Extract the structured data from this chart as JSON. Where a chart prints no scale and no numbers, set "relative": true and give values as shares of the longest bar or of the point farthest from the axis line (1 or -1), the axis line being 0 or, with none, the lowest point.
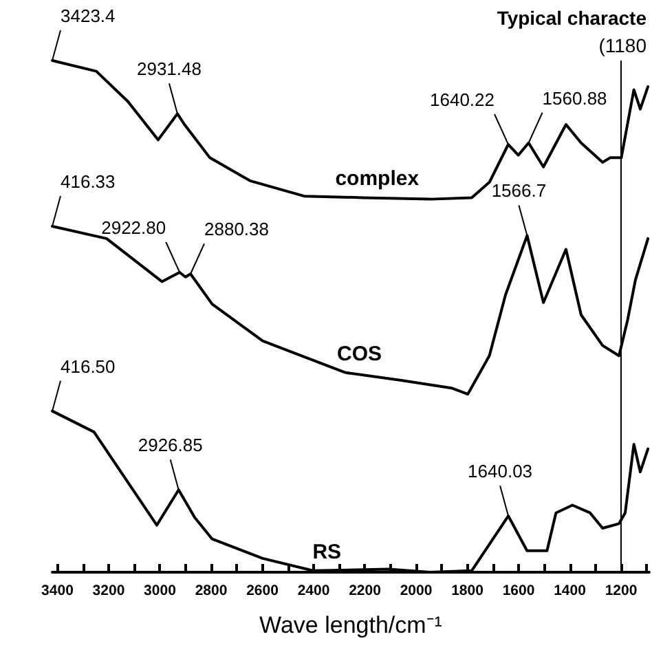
{
  "chart_data": {
    "type": "line",
    "relative": true,
    "xlabel": "Wave length/cm⁻¹",
    "xlim": [
      3420,
      1090
    ],
    "xticks": [
      3400,
      {
        "value": 3300,
        "label": null
      },
      3200,
      {
        "value": 3100,
        "label": null
      },
      3000,
      {
        "value": 2900,
        "label": null
      },
      2800,
      {
        "value": 2700,
        "label": null
      },
      2600,
      {
        "value": 2500,
        "label": null
      },
      2400,
      {
        "value": 2300,
        "label": null
      },
      2200,
      {
        "value": 2100,
        "label": null
      },
      2000,
      {
        "value": 1900,
        "label": null
      },
      1800,
      {
        "value": 1700,
        "label": null
      },
      1600,
      {
        "value": 1500,
        "label": null
      },
      1400,
      {
        "value": 1300,
        "label": null
      },
      1200,
      {
        "value": 1100,
        "label": null
      }
    ],
    "tick_labels": "x",
    "grid": false,
    "legend": false,
    "marker": "none",
    "line_style": "solid",
    "series": [
      {
        "name": "complex",
        "color": "#000000",
        "x": [
          3420,
          3248,
          3125,
          3007,
          2931.48,
          2904,
          2805,
          2648,
          2437,
          2206,
          1945,
          1783,
          1714,
          1640.22,
          1601,
          1560.88,
          1503,
          1415,
          1356,
          1272,
          1243,
          1199,
          1184,
          1150,
          1125,
          1095
        ],
        "values": [
          1.0,
          0.979,
          0.92,
          0.845,
          0.896,
          0.875,
          0.81,
          0.765,
          0.735,
          0.732,
          0.729,
          0.732,
          0.762,
          0.836,
          0.815,
          0.839,
          0.792,
          0.875,
          0.839,
          0.801,
          0.81,
          0.81,
          0.851,
          0.943,
          0.905,
          0.949
        ]
      },
      {
        "name": "COS",
        "color": "#000000",
        "x": [
          3420,
          3208,
          2992,
          2922.8,
          2900,
          2880.38,
          2796,
          2599,
          2275,
          2058,
          1862,
          1798,
          1714,
          1651,
          1566.7,
          1503,
          1415,
          1356,
          1272,
          1208,
          1174,
          1144,
          1095
        ],
        "values": [
          0.676,
          0.652,
          0.568,
          0.586,
          0.577,
          0.583,
          0.524,
          0.452,
          0.39,
          0.375,
          0.36,
          0.348,
          0.423,
          0.542,
          0.658,
          0.527,
          0.631,
          0.503,
          0.443,
          0.423,
          0.494,
          0.571,
          0.652
        ]
      },
      {
        "name": "RS",
        "color": "#000000",
        "x": [
          3420,
          3257,
          3125,
          3012,
          2926.85,
          2864,
          2796,
          2599,
          2402,
          2108,
          1945,
          1783,
          1640.03,
          1567,
          1489,
          1454,
          1390,
          1321,
          1272,
          1208,
          1184,
          1150,
          1125,
          1095
        ],
        "values": [
          0.315,
          0.274,
          0.176,
          0.092,
          0.161,
          0.107,
          0.065,
          0.027,
          0.003,
          0.006,
          0,
          0.003,
          0.11,
          0.042,
          0.042,
          0.116,
          0.131,
          0.116,
          0.086,
          0.095,
          0.116,
          0.25,
          0.196,
          0.241
        ]
      }
    ],
    "ref_lines": [
      {
        "axis": "x",
        "value": 1200,
        "color": "#000000"
      }
    ],
    "annotations": [
      "Typical characte",
      "(1180",
      {
        "text": "3423.4",
        "x": 3420,
        "y": 1.0
      },
      {
        "text": "2931.48",
        "x": 2931.48,
        "y": 0.896
      },
      {
        "text": "1640.22",
        "x": 1640.22,
        "y": 0.836
      },
      {
        "text": "1560.88",
        "x": 1560.88,
        "y": 0.839
      },
      {
        "text": "416.33",
        "x": 3420,
        "y": 0.676
      },
      {
        "text": "2922.80",
        "x": 2922.8,
        "y": 0.586
      },
      {
        "text": "2880.38",
        "x": 2880.38,
        "y": 0.583
      },
      {
        "text": "1566.7",
        "x": 1566.7,
        "y": 0.658
      },
      {
        "text": "416.50",
        "x": 3420,
        "y": 0.315
      },
      {
        "text": "2926.85",
        "x": 2926.85,
        "y": 0.161
      },
      {
        "text": "1640.03",
        "x": 1640.03,
        "y": 0.11
      }
    ]
  }
}
